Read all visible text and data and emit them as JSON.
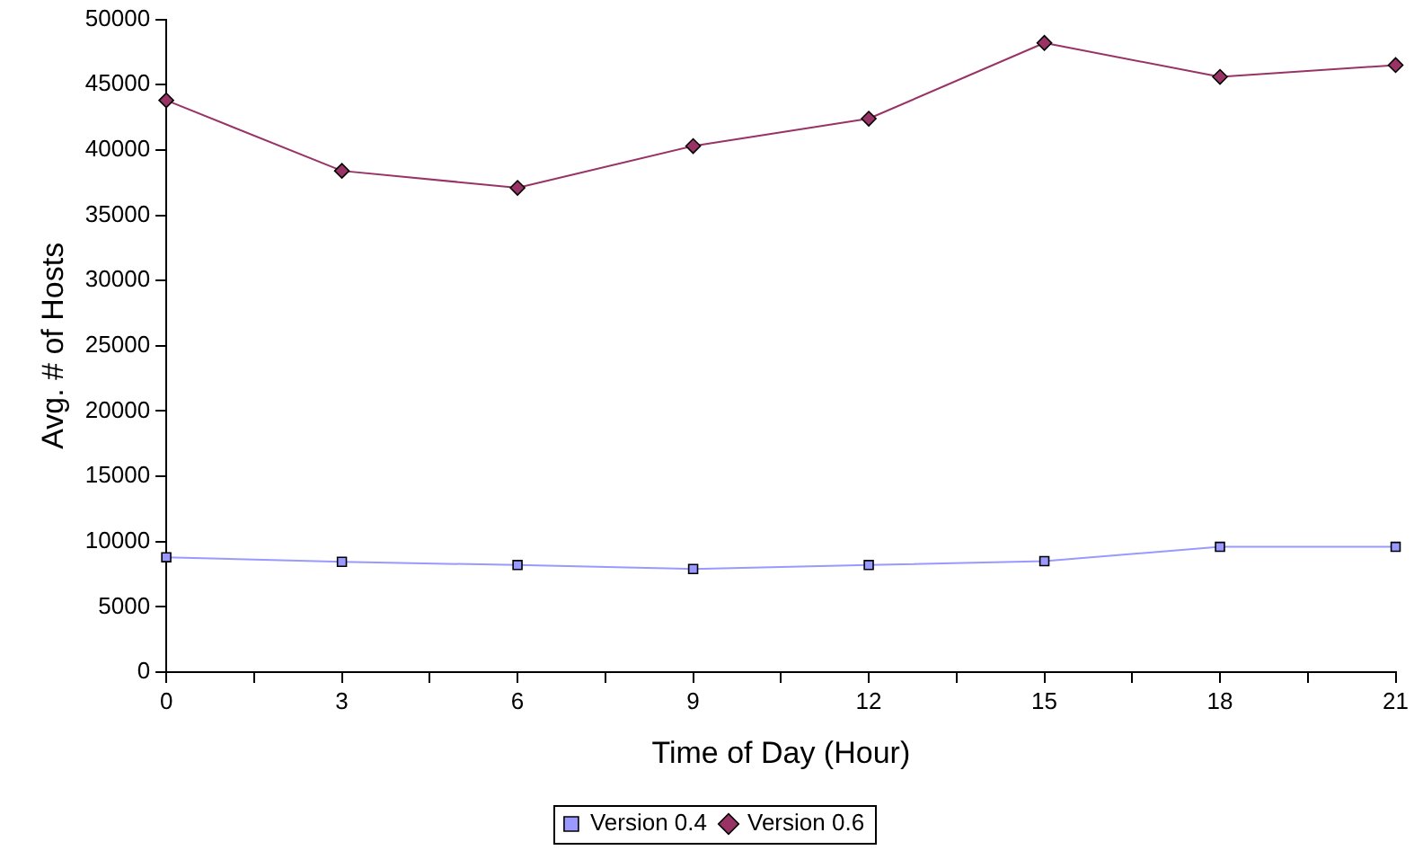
{
  "chart_data": {
    "type": "line",
    "xlabel": "Time of Day (Hour)",
    "ylabel": "Avg. # of Hosts",
    "x": [
      0,
      3,
      6,
      9,
      12,
      15,
      18,
      21
    ],
    "series": [
      {
        "name": "Version 0.4",
        "color": "#9999ff",
        "marker": "square",
        "values": [
          8800,
          8450,
          8200,
          7900,
          8200,
          8500,
          9600,
          9600
        ]
      },
      {
        "name": "Version 0.6",
        "color": "#993366",
        "marker": "diamond",
        "values": [
          43800,
          38400,
          37100,
          40300,
          42400,
          48200,
          45600,
          46500
        ]
      }
    ],
    "xlim": [
      0,
      21
    ],
    "xticks": [
      0,
      {
        "value": 1.5,
        "label": null
      },
      3,
      {
        "value": 4.5,
        "label": null
      },
      6,
      {
        "value": 7.5,
        "label": null
      },
      9,
      {
        "value": 10.5,
        "label": null
      },
      12,
      {
        "value": 13.5,
        "label": null
      },
      15,
      {
        "value": 16.5,
        "label": null
      },
      18,
      {
        "value": 19.5,
        "label": null
      },
      21
    ],
    "ylim": [
      0,
      50000
    ],
    "yticks": [
      0,
      5000,
      10000,
      15000,
      20000,
      25000,
      30000,
      35000,
      40000,
      45000,
      50000
    ],
    "grid": false,
    "legend": "bottom",
    "line_style": "solid"
  }
}
